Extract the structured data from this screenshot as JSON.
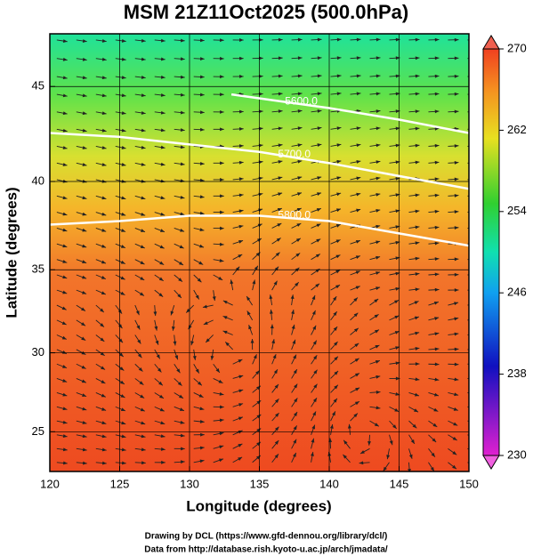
{
  "chart_data": {
    "type": "contour-map",
    "title": "MSM 21Z11Oct2025 (500.0hPa)",
    "x_label": "Longitude (degrees)",
    "y_label": "Latitude  (degrees)",
    "xlim": [
      120,
      150
    ],
    "ylim": [
      22.4,
      47.6
    ],
    "xticks": [
      120,
      125,
      130,
      135,
      140,
      145,
      150
    ],
    "yticks": [
      25,
      30,
      35,
      40,
      45
    ],
    "grid": true,
    "colorbar": {
      "lim": [
        230,
        270
      ],
      "ticks": [
        230,
        238,
        246,
        254,
        262,
        270
      ]
    },
    "contours": [
      {
        "level": 5600,
        "label": "5600.0",
        "lon": [
          133,
          136,
          140,
          145,
          150
        ],
        "lat": [
          44.6,
          44.3,
          43.9,
          43.3,
          42.6
        ]
      },
      {
        "level": 5700,
        "label": "5700.0",
        "lon": [
          120,
          125,
          130,
          135,
          140,
          145,
          150
        ],
        "lat": [
          42.6,
          42.4,
          42.0,
          41.6,
          41.0,
          40.3,
          39.6
        ]
      },
      {
        "level": 5800,
        "label": "5800.0",
        "lon": [
          120,
          125,
          130,
          135,
          140,
          145,
          150
        ],
        "lat": [
          37.6,
          37.8,
          38.1,
          38.1,
          37.8,
          37.1,
          36.4
        ]
      }
    ],
    "credits": [
      "Drawing by DCL (https://www.gfd-dennou.org/library/dcl/)",
      "Data from http://database.rish.kyoto-u.ac.jp/arch/jmadata/"
    ]
  }
}
